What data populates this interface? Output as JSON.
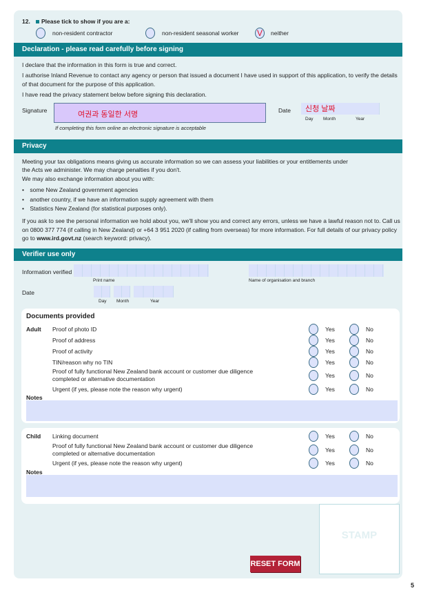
{
  "question12": {
    "number": "12.",
    "prompt": "Please tick to show if you are a:",
    "options": [
      {
        "label": "non-resident contractor",
        "checked": false
      },
      {
        "label": "non-resident seasonal worker",
        "checked": false
      },
      {
        "label": "neither",
        "checked": true,
        "mark": "V"
      }
    ]
  },
  "declaration": {
    "title": "Declaration - please read carefully before signing",
    "lines": [
      "I declare that the information in this form is true and correct.",
      "I authorise Inland Revenue to contact any agency or person that issued a document I have used in support of this application, to verify the details of that document for the purpose of this application.",
      "I have read the privacy statement below before signing this declaration."
    ],
    "signature_label": "Signature",
    "signature_value": "여권과 동일한 서명",
    "date_label": "Date",
    "date_value": "신청 날짜",
    "day": "Day",
    "month": "Month",
    "year": "Year",
    "note": "If completing this form online an electronic signature is acceptable"
  },
  "privacy": {
    "title": "Privacy",
    "p1": "Meeting your tax obligations means giving us accurate information so we can assess your liabilities or your entitlements under the Acts we administer. We may charge penalties if you don't.",
    "p2": "We may also exchange information about you with:",
    "bullets": [
      "some New Zealand government agencies",
      "another country, if we have an information supply agreement with them",
      "Statistics New Zealand (for statistical purposes only)."
    ],
    "p3": "If you ask to see the personal information we hold about you, we'll show you and correct any errors, unless we have a lawful reason not to. Call us on 0800 377 774 (if calling in New Zealand) or +64 3 951 2020 (if calling from overseas) for more information. For full details of our privacy policy go to",
    "p3_link": "www.ird.govt.nz",
    "p3_end": "(search keyword: privacy)."
  },
  "verifier": {
    "title": "Verifier use only",
    "verified_by": "Information verified by",
    "print_name": "Print name",
    "org": "Name of organisation and branch",
    "date": "Date",
    "day": "Day",
    "month": "Month",
    "year": "Year"
  },
  "documents": {
    "title": "Documents provided",
    "adult_label": "Adult",
    "child_label": "Child",
    "notes_label": "Notes",
    "yes": "Yes",
    "no": "No",
    "adult": [
      "Proof of photo ID",
      "Proof of address",
      "Proof of activity",
      "TIN/reason why no TIN",
      "Proof of fully functional New Zealand bank account or customer due diligence completed or alternative documentation",
      "Urgent (if yes, please note the reason why urgent)"
    ],
    "child": [
      "Linking document",
      "Proof of fully functional New Zealand bank account or customer due diligence completed or alternative documentation",
      "Urgent (if yes, please note the reason why urgent)"
    ]
  },
  "stamp": "STAMP",
  "reset_label": "RESET FORM",
  "page_number": "5",
  "colors": {
    "header": "#0e818c",
    "panel": "#e6f1f3",
    "field": "#dbe2fb",
    "reset": "#b32237",
    "mark": "#e0102a"
  }
}
